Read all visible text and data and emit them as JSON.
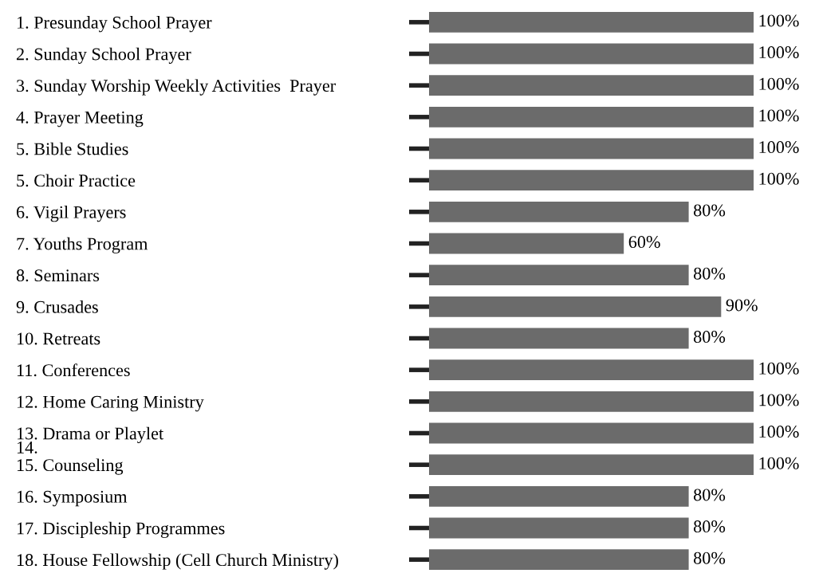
{
  "chart_data": {
    "type": "bar",
    "orientation": "horizontal",
    "color": "#6b6b6b",
    "categories": [
      "1. Presunday School Prayer",
      "2. Sunday School Prayer",
      "3. Sunday Worship Weekly Activities  Prayer",
      "4. Prayer Meeting",
      "5. Bible Studies",
      "5. Choir Practice",
      "6. Vigil Prayers",
      "7. Youths Program",
      "8. Seminars",
      "9. Crusades",
      "10. Retreats",
      "11. Conferences",
      "12. Home Caring Ministry",
      "13. Drama or Playlet",
      "15. Counseling",
      "16. Symposium",
      "17. Discipleship Programmes",
      "18. House Fellowship (Cell Church Ministry)"
    ],
    "annotations": [
      "14."
    ],
    "values": [
      100,
      100,
      100,
      100,
      100,
      100,
      80,
      60,
      80,
      90,
      80,
      100,
      100,
      100,
      100,
      80,
      80,
      80
    ],
    "value_labels": [
      "100%",
      "100%",
      "100%",
      "100%",
      "100%",
      "100%",
      "80%",
      "60%",
      "80%",
      "90%",
      "80%",
      "100%",
      "100%",
      "100%",
      "100%",
      "80%",
      "80%",
      "80%"
    ],
    "grid": false,
    "legend": false
  }
}
